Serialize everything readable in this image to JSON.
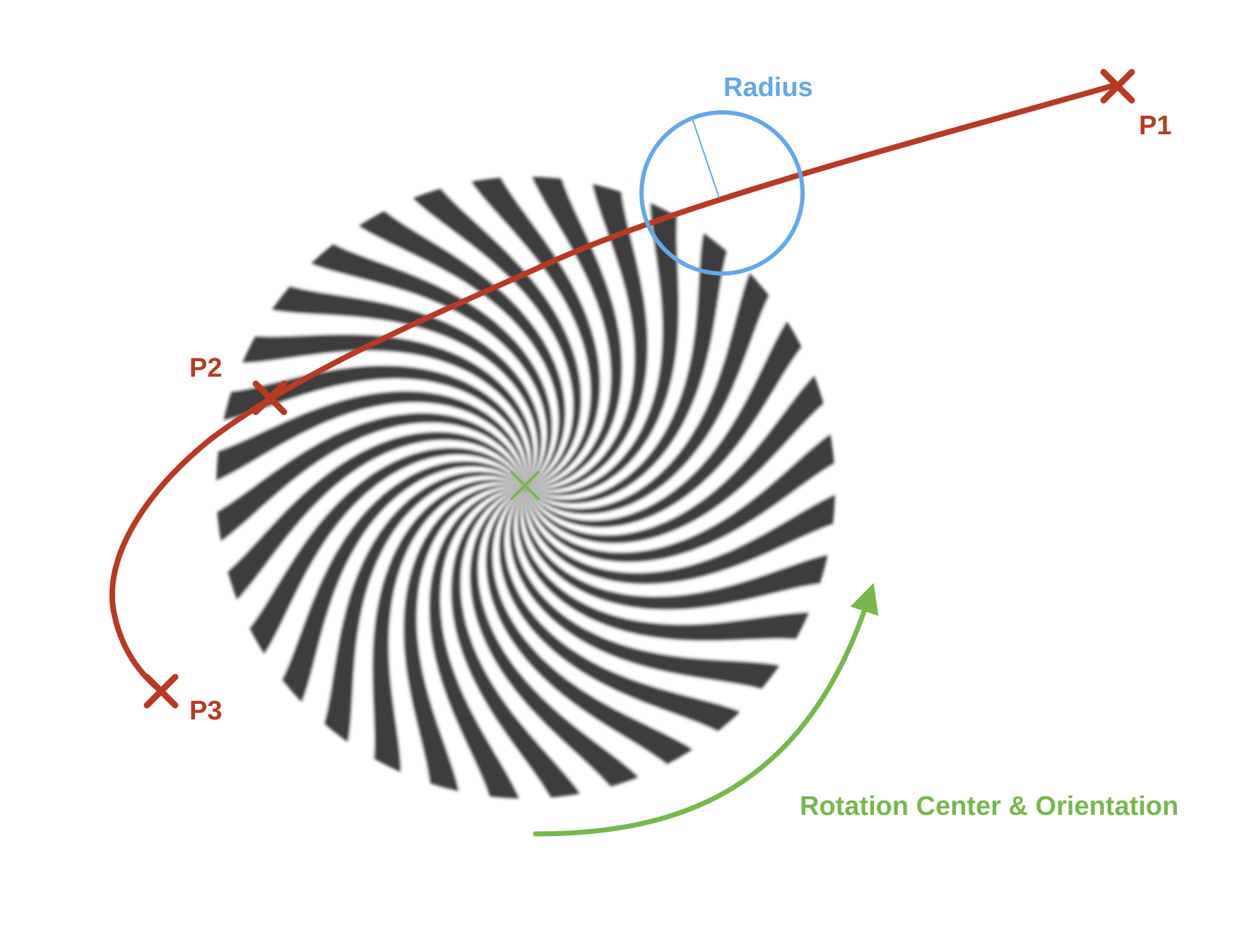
{
  "diagram": {
    "labels": {
      "radius": "Radius",
      "p1": "P1",
      "p2": "P2",
      "p3": "P3",
      "rotation": "Rotation Center & Orientation"
    },
    "spiral": {
      "spokes": 32,
      "twist_degrees": 90
    },
    "colors": {
      "path": "#b83a24",
      "radius": "#62a8ec",
      "rotation": "#76b84c",
      "spoke": "#3c3c3c",
      "background": "#ffffff"
    }
  }
}
